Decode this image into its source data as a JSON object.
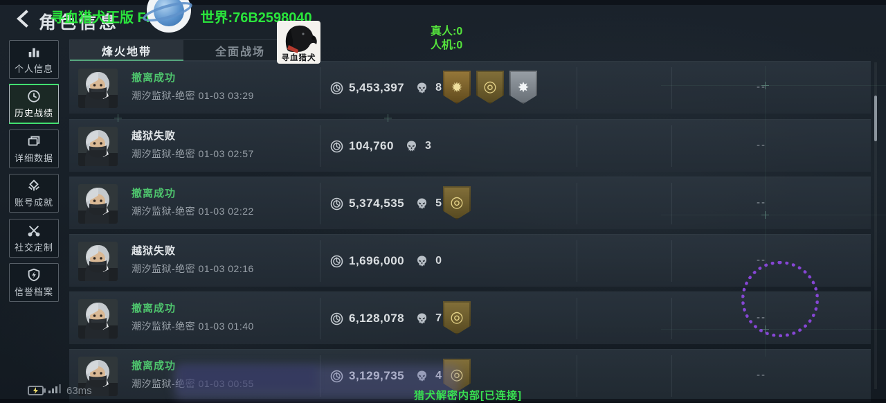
{
  "header": {
    "title": "角色信息",
    "overlay_banner": {
      "left": "寻血猎犬正版 FPS",
      "right": "世界:76B2598040"
    },
    "player_counters": {
      "real": "真人:0",
      "bots": "人机:0"
    },
    "watermark_logo_text": "寻血猎犬"
  },
  "tabs": [
    {
      "label": "烽火地带",
      "active": true
    },
    {
      "label": "全面战场",
      "active": false
    }
  ],
  "sidebar": {
    "items": [
      {
        "label": "个人信息",
        "icon": "bar-chart-icon",
        "active": false
      },
      {
        "label": "历史战绩",
        "icon": "history-clock-icon",
        "active": true
      },
      {
        "label": "详细数据",
        "icon": "data-files-icon",
        "active": false
      },
      {
        "label": "账号成就",
        "icon": "achievement-medal-icon",
        "active": false
      },
      {
        "label": "社交定制",
        "icon": "tools-icon",
        "active": false
      },
      {
        "label": "信誉档案",
        "icon": "shield-bolt-icon",
        "active": false
      }
    ]
  },
  "records": [
    {
      "status": "撤离成功",
      "success": true,
      "location": "潮汐监狱-绝密 01-03 03:29",
      "money": "5,453,397",
      "kills": "8",
      "badges": [
        "gold-star",
        "gold-circle",
        "silver-burst"
      ],
      "extra": "--"
    },
    {
      "status": "越狱失败",
      "success": false,
      "location": "潮汐监狱-绝密 01-03 02:57",
      "money": "104,760",
      "kills": "3",
      "badges": [],
      "extra": "--"
    },
    {
      "status": "撤离成功",
      "success": true,
      "location": "潮汐监狱-绝密 01-03 02:22",
      "money": "5,374,535",
      "kills": "5",
      "badges": [
        "gold-circle"
      ],
      "extra": "--"
    },
    {
      "status": "越狱失败",
      "success": false,
      "location": "潮汐监狱-绝密 01-03 02:16",
      "money": "1,696,000",
      "kills": "0",
      "badges": [],
      "extra": "--"
    },
    {
      "status": "撤离成功",
      "success": true,
      "location": "潮汐监狱-绝密 01-03 01:40",
      "money": "6,128,078",
      "kills": "7",
      "badges": [
        "gold-circle"
      ],
      "extra": "--"
    },
    {
      "status": "撤离成功",
      "success": true,
      "location": "潮汐监狱-绝密 01-03 00:55",
      "money": "3,129,735",
      "kills": "4",
      "badges": [
        "gold-circle"
      ],
      "extra": "--"
    }
  ],
  "footer": {
    "latency": "63ms",
    "connection_status": "猎犬解密内部[已连接]"
  },
  "colors": {
    "banner_green": "#2ae63c",
    "success_green": "#4ec46d",
    "footer_green": "#38e051",
    "tab_underline": "#57a87f",
    "overlay_purple": "#8f49e3"
  }
}
